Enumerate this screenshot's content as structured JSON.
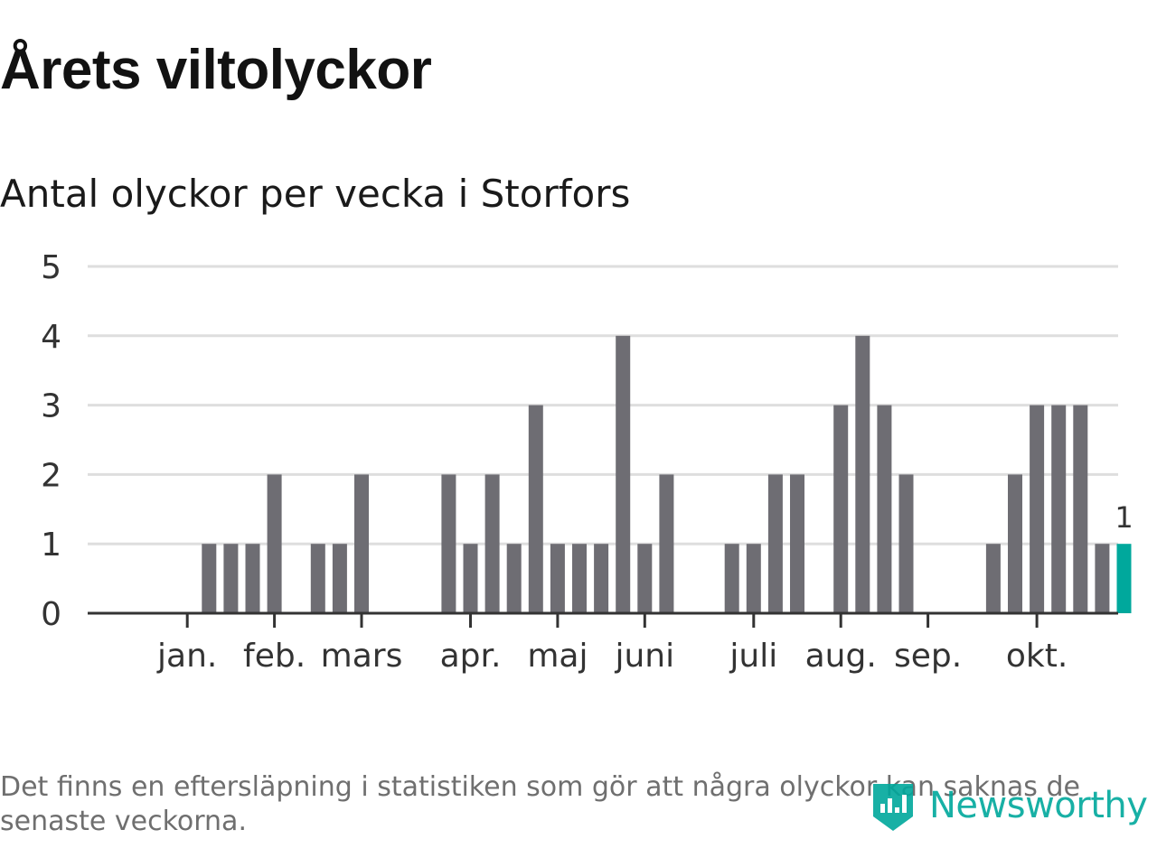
{
  "header": {
    "title": "Årets viltolyckor",
    "subtitle": "Antal olyckor per vecka i Storfors"
  },
  "footer": {
    "note": "Det finns en eftersläpning i statistiken som gör att några olyckor kan saknas de senaste veckorna.",
    "brand": "Newsworthy",
    "logo_icon": "newsworthy-logo-icon"
  },
  "colors": {
    "bar": "#6e6d73",
    "highlight": "#00a89c",
    "grid": "#dedede",
    "axis": "#333333",
    "text": "#333333"
  },
  "chart_data": {
    "type": "bar",
    "title": "Antal olyckor per vecka i Storfors",
    "xlabel": "",
    "ylabel": "",
    "ylim": [
      0,
      5
    ],
    "yticks": [
      0,
      1,
      2,
      3,
      4,
      5
    ],
    "grid": true,
    "weeks": [
      1,
      2,
      3,
      4,
      5,
      6,
      7,
      8,
      9,
      10,
      11,
      12,
      13,
      14,
      15,
      16,
      17,
      18,
      19,
      20,
      21,
      22,
      23,
      24,
      25,
      26,
      27,
      28,
      29,
      30,
      31,
      32,
      33,
      34,
      35,
      36,
      37,
      38,
      39,
      40,
      41,
      42,
      43,
      44,
      45,
      46
    ],
    "values": [
      0,
      0,
      0,
      1,
      1,
      1,
      2,
      0,
      1,
      1,
      2,
      0,
      0,
      0,
      2,
      1,
      2,
      1,
      3,
      1,
      1,
      1,
      4,
      1,
      2,
      0,
      0,
      1,
      1,
      2,
      2,
      0,
      3,
      4,
      3,
      2,
      0,
      0,
      0,
      1,
      2,
      3,
      3,
      3,
      1,
      1
    ],
    "month_ticks": [
      {
        "label": "jan.",
        "week": 3
      },
      {
        "label": "feb.",
        "week": 7
      },
      {
        "label": "mars",
        "week": 11
      },
      {
        "label": "apr.",
        "week": 16
      },
      {
        "label": "maj",
        "week": 20
      },
      {
        "label": "juni",
        "week": 24
      },
      {
        "label": "juli",
        "week": 29
      },
      {
        "label": "aug.",
        "week": 33
      },
      {
        "label": "sep.",
        "week": 37
      },
      {
        "label": "okt.",
        "week": 42
      }
    ],
    "highlight_week": 46,
    "annotation": {
      "week": 46,
      "text": "1"
    }
  }
}
